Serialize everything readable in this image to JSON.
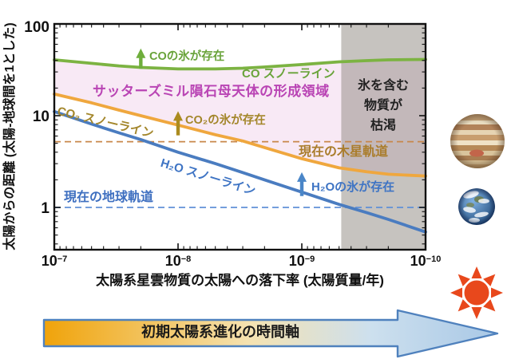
{
  "labels": {
    "y_axis_title": "太陽からの距離 (太陽-地球間を1とした)",
    "x_axis_title": "太陽系星雲物質の太陽への落下率 (太陽質量/年)",
    "co_ice": "COの氷が存在",
    "co_line": "CO スノーライン",
    "formation_region": "サッターズミル隕石母天体の形成領域",
    "co2_ice": "CO₂の氷が存在",
    "co2_line": "CO₂ スノーライン",
    "jupiter_orbit": "現在の木星軌道",
    "h2o_line": "H₂O スノーライン",
    "h2o_ice": "H₂Oの氷が存在",
    "earth_orbit": "現在の地球軌道",
    "depleted_line1": "氷を含む",
    "depleted_line2": "物質が",
    "depleted_line3": "枯渇",
    "timeline": "初期太陽系進化の時間軸"
  },
  "axes": {
    "y_ticks": [
      "100",
      "10",
      "1"
    ],
    "x_tick_base": "10",
    "x_tick_exponents": [
      "−7",
      "−8",
      "−9",
      "−10"
    ]
  },
  "colors": {
    "axis": "#111111",
    "co_line": "#7cb342",
    "co_label": "#69a33a",
    "co2_line": "#efa73e",
    "co2_label": "#a3862a",
    "h2o_line": "#4a7cc0",
    "h2o_label": "#3e74c4",
    "formation_fill": "#f8e9f5",
    "formation_label": "#b944b4",
    "depleted_fill": "#8d8780",
    "depleted_label": "#222222",
    "jupiter_orbit_line": "#c8874a",
    "jupiter_orbit_label": "#aa7d2c",
    "earth_orbit_line": "#6090d8",
    "earth_orbit_label": "#3e6fc0",
    "timeline_border": "#4f81bd",
    "timeline_label": "#1a1a1a",
    "timeline_stops": [
      "#f0a30a",
      "#f5e2b0",
      "#cde0ee",
      "#a9c8e6"
    ],
    "sun": "#e8481c"
  },
  "annotations": {
    "ice_arrows": [
      {
        "name": "CO-ice-arrow",
        "x": 2e-08,
        "d_from": 32.5,
        "d_to": 54,
        "color": "#6fae3c"
      },
      {
        "name": "CO2-ice-arrow",
        "x": 1e-08,
        "d_from": 6.1,
        "d_to": 11.2,
        "color": "#ab8b1f"
      },
      {
        "name": "H2O-ice-arrow",
        "x": 1e-09,
        "d_from": 1.33,
        "d_to": 2.42,
        "color": "#4a86c8"
      }
    ]
  },
  "chart_data": {
    "type": "line",
    "title": "",
    "xlabel": "太陽系星雲物質の太陽への落下率 (太陽質量/年)",
    "ylabel": "太陽からの距離 (太陽-地球間を1とした)",
    "x_scale": "log_reversed",
    "y_scale": "log",
    "xlim": [
      1e-07,
      1e-10
    ],
    "ylim_displayed": [
      0.35,
      100
    ],
    "grid": false,
    "x": [
      1e-07,
      5e-08,
      3e-08,
      2e-08,
      1e-08,
      5e-09,
      3e-09,
      2e-09,
      1e-09,
      5e-10,
      3e-10,
      2e-10,
      1e-10
    ],
    "series": [
      {
        "name": "CO スノーライン",
        "color": "#7cb342",
        "values": [
          40.6,
          37.2,
          34.9,
          33.6,
          32.3,
          32.3,
          32.9,
          33.9,
          36.1,
          38.6,
          39.8,
          40.6,
          41.0
        ]
      },
      {
        "name": "CO₂ スノーライン",
        "color": "#efa73e",
        "values": [
          17.2,
          13.8,
          11.5,
          10.0,
          7.9,
          6.2,
          5.3,
          4.5,
          3.4,
          2.7,
          2.45,
          2.3,
          2.2
        ]
      },
      {
        "name": "H₂O スノーライン",
        "color": "#4a7cc0",
        "values": [
          11.1,
          8.1,
          6.5,
          5.5,
          4.0,
          3.0,
          2.4,
          2.0,
          1.47,
          1.08,
          0.88,
          0.74,
          0.54
        ]
      }
    ],
    "reference_lines": [
      {
        "name": "現在の木星軌道",
        "value": 5.2,
        "style": "dashed",
        "color": "#c8874a"
      },
      {
        "name": "現在の地球軌道",
        "value": 1.0,
        "style": "dashed",
        "color": "#6090d8"
      }
    ],
    "regions": [
      {
        "name": "サッターズミル隕石母天体の形成領域",
        "between": [
          "CO₂ スノーライン",
          "CO スノーライン"
        ],
        "fill": "#f8e9f5"
      },
      {
        "name": "氷を含む物質が枯渇",
        "x_from": 4.8e-10,
        "x_to": 1e-10,
        "fill": "#8d8780"
      }
    ],
    "depleted_region": {
      "x_start": 4.8e-10
    }
  }
}
